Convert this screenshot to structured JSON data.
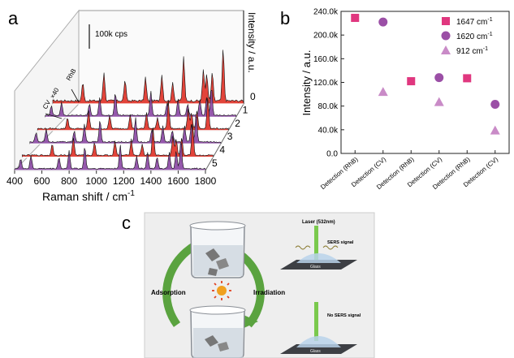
{
  "panel_a": {
    "label": "a",
    "scale_bar": "100k cps",
    "z_axis_label": "Intensity / a.u.",
    "x_axis_label": "Raman shift / cm",
    "x_axis_superscript": "-1",
    "x_ticks": [
      400,
      600,
      800,
      1000,
      1200,
      1400,
      1600,
      1800
    ],
    "depth_labels": [
      "0",
      "1",
      "2",
      "3",
      "4",
      "5"
    ],
    "annotation_cv": "CV",
    "annotation_mult": "×40",
    "annotation_rhb": "RhB"
  },
  "panel_b": {
    "label": "b",
    "ylabel": "Intensity / a.u."
  },
  "panel_c": {
    "label": "c",
    "laser_label": "Laser (532nm)",
    "sers_signal": "SERS signal",
    "no_sers_signal": "No SERS signal",
    "glass_top": "Glass",
    "glass_bottom": "Glass",
    "adsorption": "Adsorption",
    "irradiation": "Irradiation"
  },
  "chart_data": [
    {
      "type": "area",
      "description_axis": "Raman shift",
      "x": [
        400,
        600,
        800,
        1000,
        1200,
        1400,
        1600,
        1800
      ],
      "xlim": [
        400,
        1800
      ],
      "series": [
        {
          "name": "0",
          "color": "#e03a2f"
        },
        {
          "name": "1",
          "color": "#8f4fa8"
        },
        {
          "name": "2",
          "color": "#e03a2f"
        },
        {
          "name": "3",
          "color": "#8f4fa8"
        },
        {
          "name": "4",
          "color": "#e03a2f"
        },
        {
          "name": "5",
          "color": "#8f4fa8"
        }
      ]
    },
    {
      "type": "scatter",
      "categories": [
        "Detection (RhB)",
        "Detection (CV)",
        "Detection (RhB)",
        "Detection (CV)",
        "Detection (RhB)",
        "Detection (CV)"
      ],
      "ylabel": "Intensity / a.u.",
      "ylim": [
        0,
        240000
      ],
      "yticks": [
        "0.0",
        "40.0k",
        "80.0k",
        "120.0k",
        "160.0k",
        "200.0k",
        "240.0k"
      ],
      "legend_position": "top-right",
      "series": [
        {
          "name": "1647 cm-1",
          "marker": "square",
          "color": "#e0377f",
          "values": [
            229000,
            null,
            122000,
            null,
            127000,
            null
          ]
        },
        {
          "name": "1620 cm-1",
          "marker": "circle",
          "color": "#9b4fa6",
          "values": [
            null,
            222000,
            null,
            128000,
            null,
            83000
          ]
        },
        {
          "name": "912 cm-1",
          "marker": "triangle",
          "color": "#c98bc7",
          "values": [
            null,
            104000,
            null,
            87000,
            null,
            39000
          ]
        }
      ]
    }
  ],
  "colors": {
    "red": "#e03a2f",
    "purple": "#8f4fa8",
    "green": "#5aa33f",
    "laser": "#7ac94d"
  }
}
